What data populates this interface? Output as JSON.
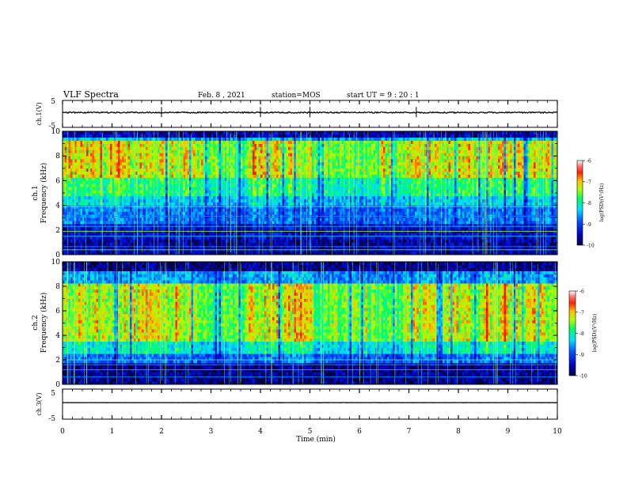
{
  "header": {
    "title": "VLF Spectra",
    "date": "Feb. 8 , 2021",
    "station": "station=MOS",
    "start": "start UT = 9 : 20 : 1"
  },
  "chart_data": [
    {
      "type": "line",
      "name": "ch1-waveform",
      "ylabel": "ch.1(V)",
      "ylim": [
        -5,
        5
      ],
      "yticks": [
        "5",
        "-5"
      ],
      "xlim": [
        0,
        10
      ]
    },
    {
      "type": "heatmap",
      "name": "ch1-spectrogram",
      "ylabel": "ch.1\nFrequency (kHz)",
      "ylabel_lines": [
        "ch.1",
        "Frequency (kHz)"
      ],
      "ylim": [
        0,
        10
      ],
      "yticks": [
        0,
        2,
        4,
        6,
        8,
        10
      ],
      "xlim": [
        0,
        10
      ],
      "colorbar": {
        "label": "log(PSD)(V²/Hz)",
        "range": [
          -10,
          -6
        ],
        "ticks": [
          -10,
          -9,
          -8,
          -7,
          -6
        ]
      }
    },
    {
      "type": "heatmap",
      "name": "ch2-spectrogram",
      "ylabel": "ch.2\nFrequency (kHz)",
      "ylabel_lines": [
        "ch.2",
        "Frequency (kHz)"
      ],
      "ylim": [
        0,
        10
      ],
      "yticks": [
        0,
        2,
        4,
        6,
        8,
        10
      ],
      "xlim": [
        0,
        10
      ],
      "colorbar": {
        "label": "log(PSD)(V²/Hz)",
        "range": [
          -10,
          -6
        ],
        "ticks": [
          -10,
          -9,
          -8,
          -7,
          -6
        ]
      }
    },
    {
      "type": "line",
      "name": "ch3-waveform",
      "ylabel": "ch.3(V)",
      "ylim": [
        -5,
        5
      ],
      "yticks": [
        "5",
        "-5"
      ],
      "xlim": [
        0,
        10
      ]
    }
  ],
  "xaxis": {
    "label": "Time (min)",
    "ticks": [
      "0",
      "1",
      "2",
      "3",
      "4",
      "5",
      "6",
      "7",
      "8",
      "9",
      "10"
    ]
  },
  "colors": {
    "scale": [
      "#000000",
      "#00008c",
      "#0030ff",
      "#00c8ff",
      "#00ff80",
      "#a0ff00",
      "#ffd000",
      "#ff4000",
      "#ff0000",
      "#ffffff"
    ]
  }
}
